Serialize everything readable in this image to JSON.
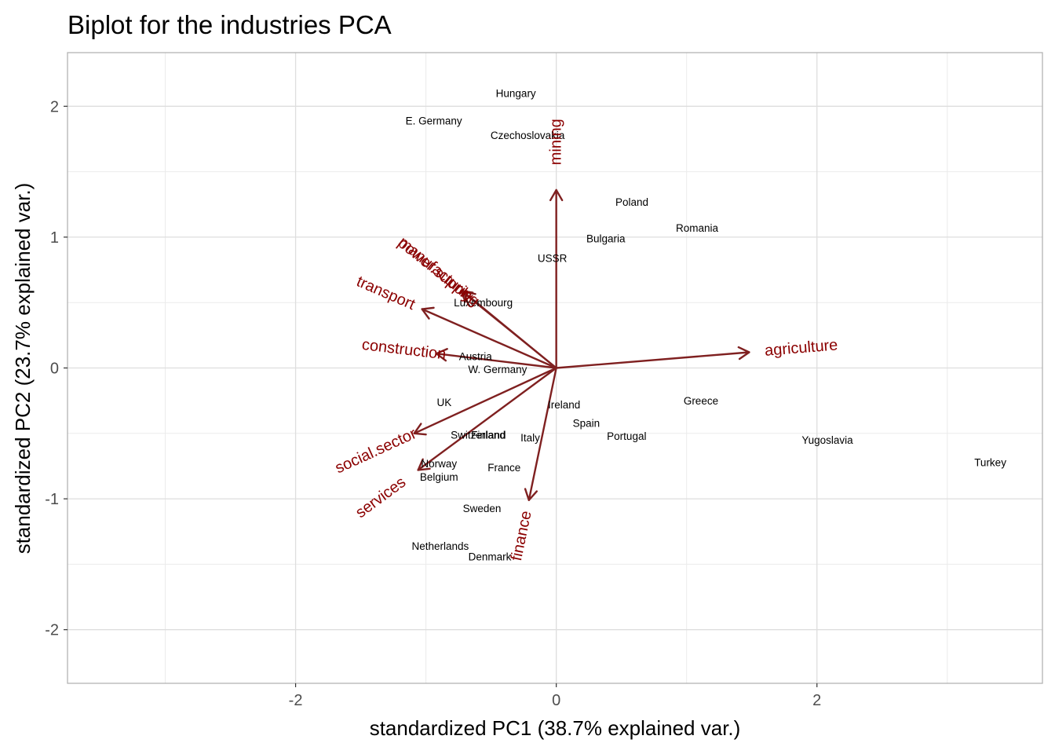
{
  "chart_data": {
    "type": "scatter",
    "title": "Biplot for the industries PCA",
    "xlabel": "standardized PC1 (38.7% explained var.)",
    "ylabel": "standardized PC2 (23.7% explained var.)",
    "xlim": [
      -3.75,
      3.73
    ],
    "ylim": [
      -2.41,
      2.41
    ],
    "x_ticks": [
      -2,
      0,
      2
    ],
    "y_ticks": [
      -2,
      -1,
      0,
      1,
      2
    ],
    "grid": true,
    "arrow_color": "#7f2020",
    "arrow_label_color": "#8b0000",
    "points": [
      {
        "label": "Hungary",
        "x": -0.31,
        "y": 2.1
      },
      {
        "label": "E. Germany",
        "x": -0.94,
        "y": 1.89
      },
      {
        "label": "Czechoslovakia",
        "x": -0.22,
        "y": 1.78
      },
      {
        "label": "Poland",
        "x": 0.58,
        "y": 1.27
      },
      {
        "label": "Romania",
        "x": 1.08,
        "y": 1.07
      },
      {
        "label": "Bulgaria",
        "x": 0.38,
        "y": 0.99
      },
      {
        "label": "USSR",
        "x": -0.03,
        "y": 0.84
      },
      {
        "label": "Luxembourg",
        "x": -0.56,
        "y": 0.5
      },
      {
        "label": "Austria",
        "x": -0.62,
        "y": 0.09
      },
      {
        "label": "W. Germany",
        "x": -0.45,
        "y": -0.01
      },
      {
        "label": "UK",
        "x": -0.86,
        "y": -0.26
      },
      {
        "label": "Ireland",
        "x": 0.06,
        "y": -0.28
      },
      {
        "label": "Greece",
        "x": 1.11,
        "y": -0.25
      },
      {
        "label": "Spain",
        "x": 0.23,
        "y": -0.42
      },
      {
        "label": "Portugal",
        "x": 0.54,
        "y": -0.52
      },
      {
        "label": "Switzerland",
        "x": -0.6,
        "y": -0.51
      },
      {
        "label": "Finland",
        "x": -0.52,
        "y": -0.51
      },
      {
        "label": "Italy",
        "x": -0.2,
        "y": -0.53
      },
      {
        "label": "Yugoslavia",
        "x": 2.08,
        "y": -0.55
      },
      {
        "label": "Turkey",
        "x": 3.33,
        "y": -0.72
      },
      {
        "label": "Norway",
        "x": -0.9,
        "y": -0.73
      },
      {
        "label": "France",
        "x": -0.4,
        "y": -0.76
      },
      {
        "label": "Belgium",
        "x": -0.9,
        "y": -0.83
      },
      {
        "label": "Sweden",
        "x": -0.57,
        "y": -1.07
      },
      {
        "label": "Netherlands",
        "x": -0.89,
        "y": -1.36
      },
      {
        "label": "Denmark",
        "x": -0.51,
        "y": -1.44
      }
    ],
    "vectors": [
      {
        "label": "agriculture",
        "x": 1.48,
        "y": 0.12
      },
      {
        "label": "mining",
        "x": 0.0,
        "y": 1.36
      },
      {
        "label": "manufacturing",
        "x": -0.71,
        "y": 0.58
      },
      {
        "label": "power.supply",
        "x": -0.73,
        "y": 0.59
      },
      {
        "label": "transport",
        "x": -1.03,
        "y": 0.45
      },
      {
        "label": "construction",
        "x": -0.92,
        "y": 0.11
      },
      {
        "label": "social.sector",
        "x": -1.09,
        "y": -0.5
      },
      {
        "label": "services",
        "x": -1.06,
        "y": -0.78
      },
      {
        "label": "finance",
        "x": -0.21,
        "y": -1.01
      }
    ]
  }
}
